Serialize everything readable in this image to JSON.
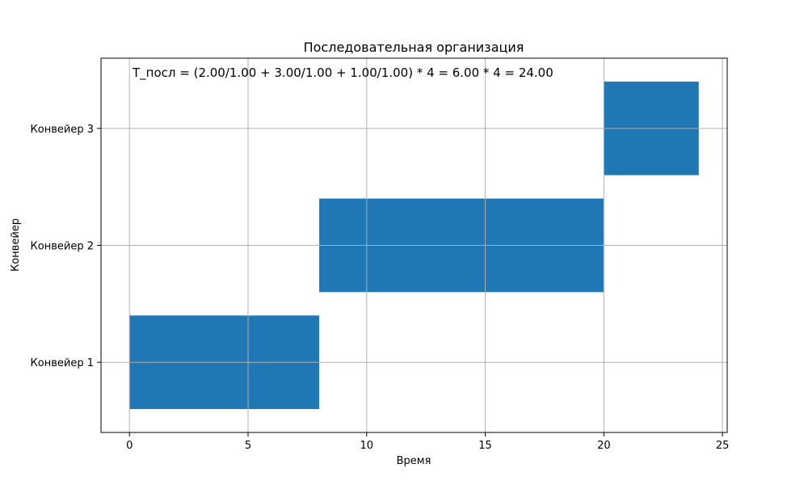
{
  "chart_data": {
    "type": "bar",
    "orientation": "horizontal",
    "title": "Последовательная организация",
    "xlabel": "Время",
    "ylabel": "Конвейер",
    "categories": [
      "Конвейер 1",
      "Конвейер 2",
      "Конвейер 3"
    ],
    "bars": [
      {
        "category": "Конвейер 1",
        "start": 0,
        "end": 8
      },
      {
        "category": "Конвейер 2",
        "start": 8,
        "end": 20
      },
      {
        "category": "Конвейер 3",
        "start": 20,
        "end": 24
      }
    ],
    "xlim": [
      -1.2,
      25.2
    ],
    "xticks": [
      0,
      5,
      10,
      15,
      20,
      25
    ],
    "annotation": "T_посл = (2.00/1.00 + 3.00/1.00 + 1.00/1.00) * 4 = 6.00 * 4 = 24.00",
    "grid": true,
    "bar_color": "#1f77b4",
    "grid_color": "#b0b0b0"
  }
}
